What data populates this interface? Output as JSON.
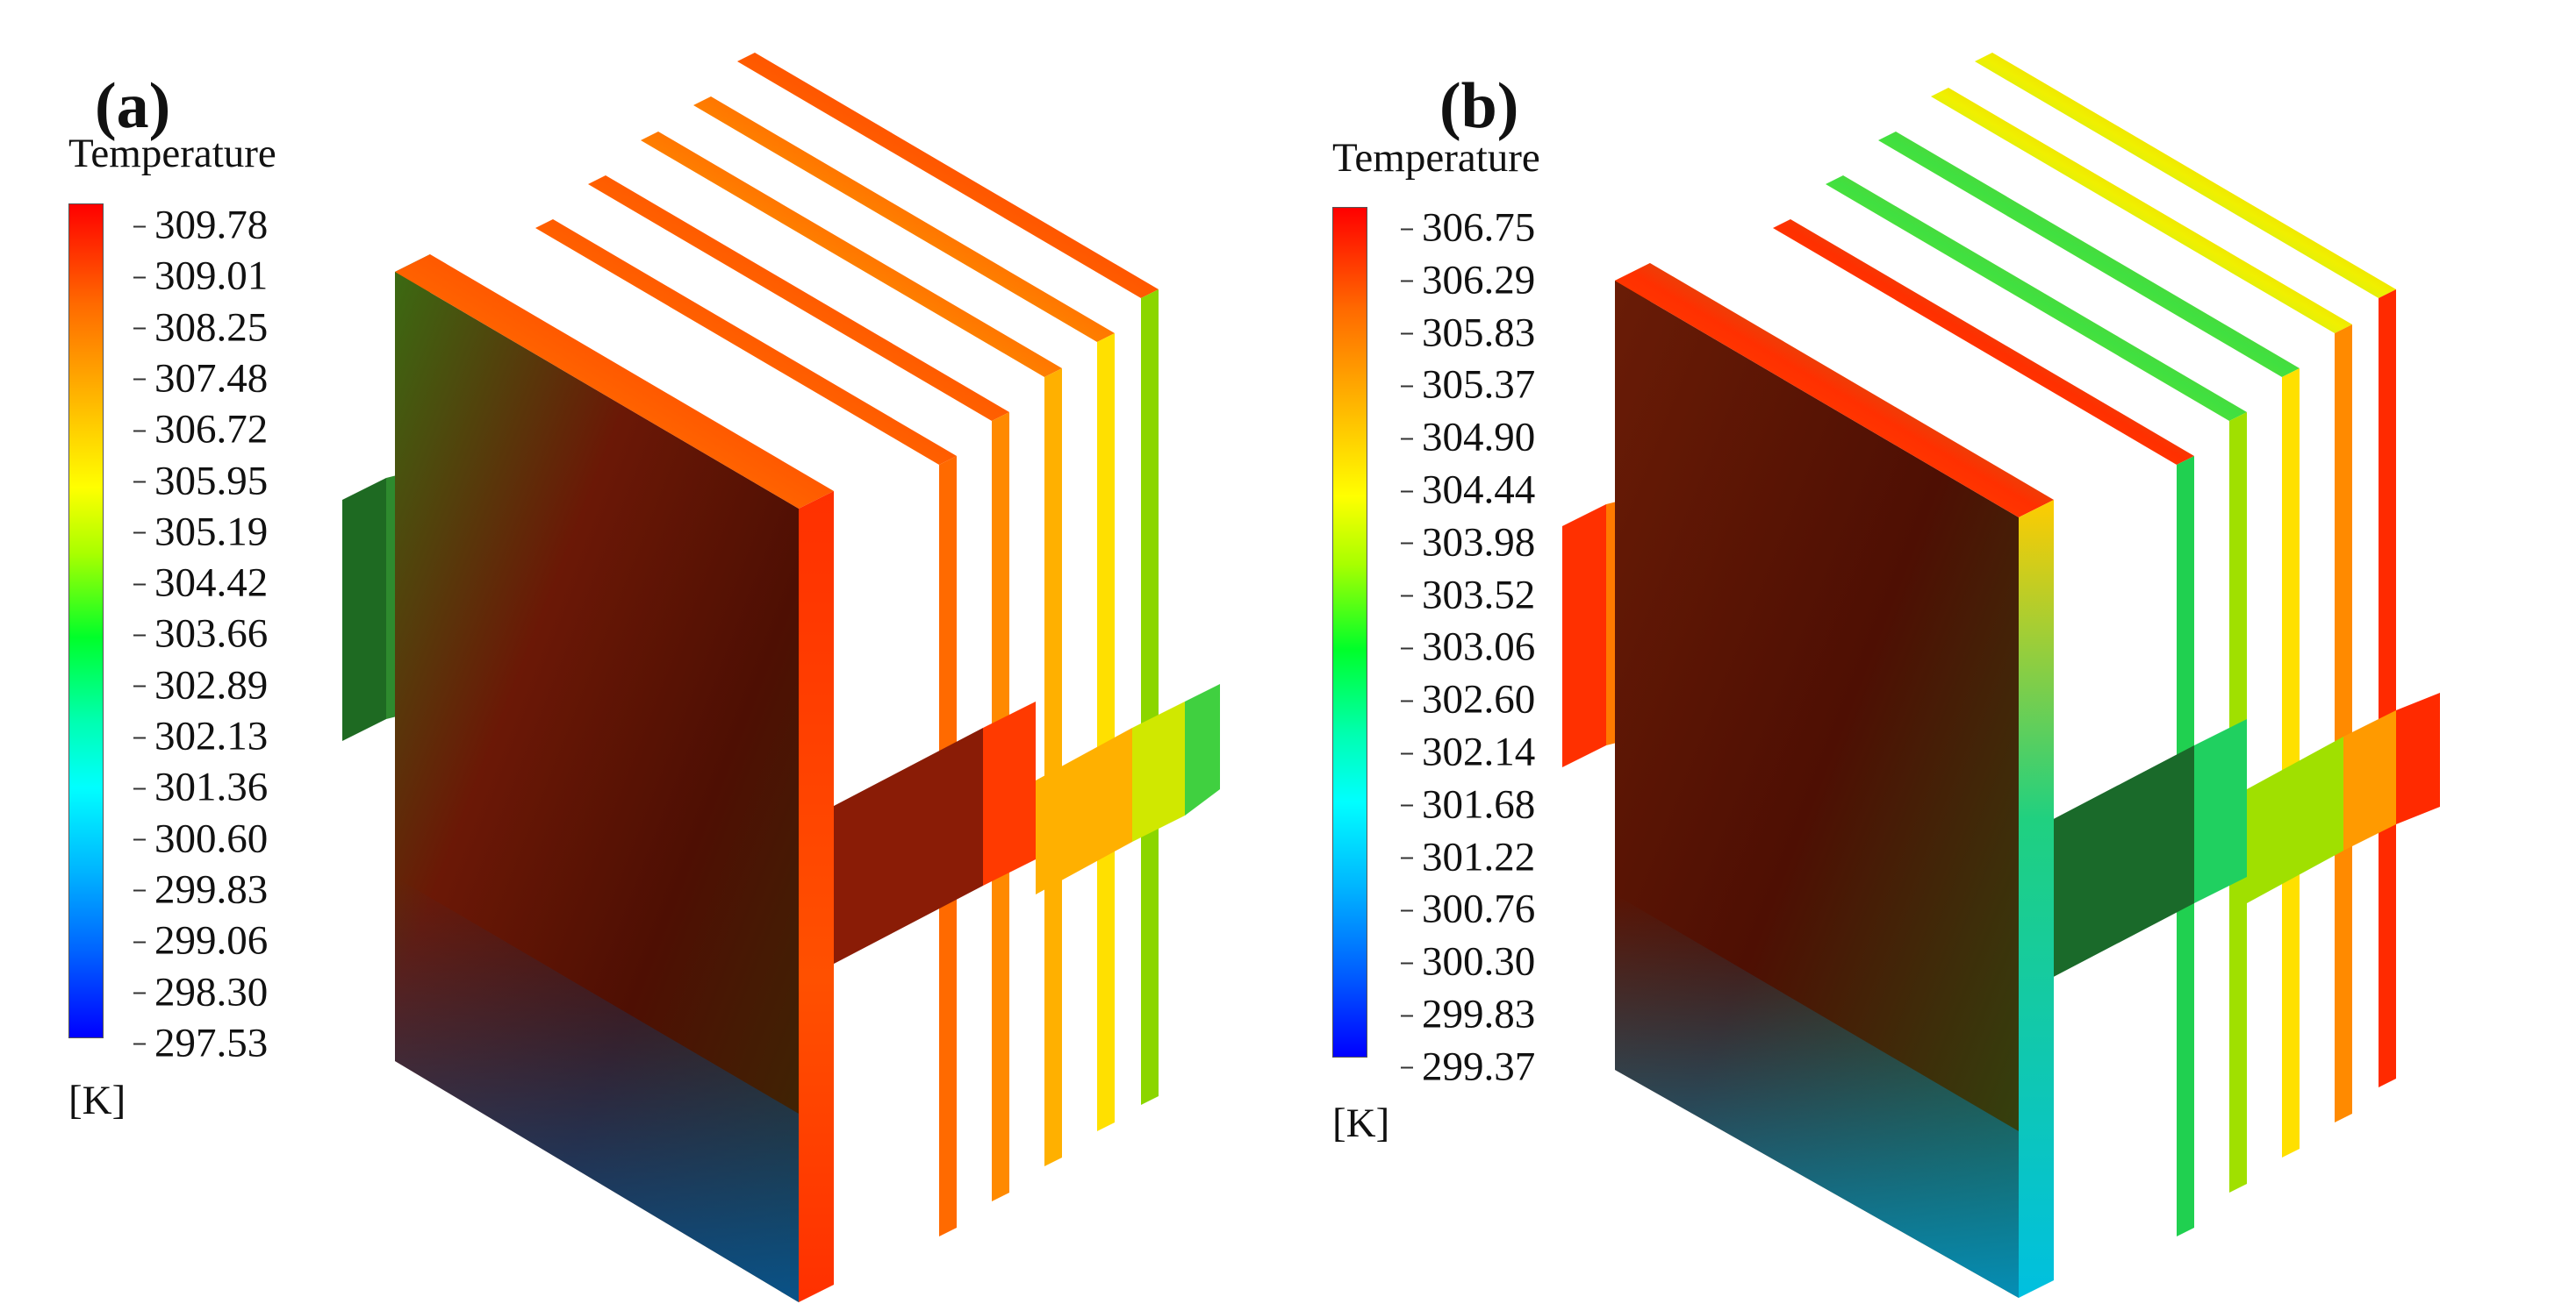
{
  "panels": [
    {
      "label": "(a)",
      "legend_title": "Temperature",
      "unit": "[K]",
      "ticks": [
        "309.78",
        "309.01",
        "308.25",
        "307.48",
        "306.72",
        "305.95",
        "305.19",
        "304.42",
        "303.66",
        "302.89",
        "302.13",
        "301.36",
        "300.60",
        "299.83",
        "299.06",
        "298.30",
        "297.53"
      ]
    },
    {
      "label": "(b)",
      "legend_title": "Temperature",
      "unit": "[K]",
      "ticks": [
        "306.75",
        "306.29",
        "305.83",
        "305.37",
        "304.90",
        "304.44",
        "303.98",
        "303.52",
        "303.06",
        "302.60",
        "302.14",
        "301.68",
        "301.22",
        "300.76",
        "300.30",
        "299.83",
        "299.37"
      ]
    }
  ],
  "colors": {
    "hot": "#ff0000",
    "warm": "#ffa500",
    "mid": "#ffff00",
    "cool": "#00ff00",
    "cold": "#00ffff",
    "coldest": "#0000ff",
    "dark_face": "#5a1a05"
  }
}
